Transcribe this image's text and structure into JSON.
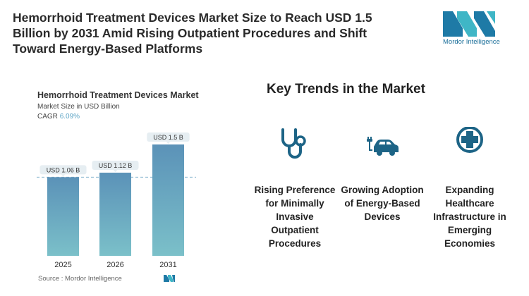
{
  "title": "Hemorrhoid Treatment Devices Market Size to Reach USD 1.5 Billion by 2031 Amid Rising Outpatient Procedures and Shift Toward Energy-Based Platforms",
  "logo": {
    "text": "Mordor Intelligence"
  },
  "colors": {
    "brand": "#1b6f9a",
    "bar_top": "#5b92b8",
    "bar_bottom": "#7bc0c9",
    "icon": "#1d6486"
  },
  "chart_data": {
    "type": "bar",
    "title": "Hemorrhoid Treatment Devices Market",
    "subtitle": "Market Size in USD Billion",
    "cagr_label": "CAGR",
    "cagr_value": "6.09%",
    "categories": [
      "2025",
      "2026",
      "2031"
    ],
    "values": [
      1.06,
      1.12,
      1.5
    ],
    "data_labels": [
      "USD 1.06 B",
      "USD 1.12 B",
      "USD 1.5 B"
    ],
    "ylim": [
      0,
      1.5
    ],
    "reference_line": "dashed at 2025 value",
    "source": "Source :  Mordor Intelligence"
  },
  "trends": {
    "heading": "Key Trends in the Market",
    "items": [
      {
        "icon": "stethoscope-icon",
        "label": "Rising Preference for Minimally Invasive Outpatient Procedures"
      },
      {
        "icon": "electric-car-icon",
        "label": "Growing Adoption of Energy-Based Devices"
      },
      {
        "icon": "medical-cross-icon",
        "label": "Expanding Healthcare Infrastructure in Emerging Economies"
      }
    ]
  }
}
